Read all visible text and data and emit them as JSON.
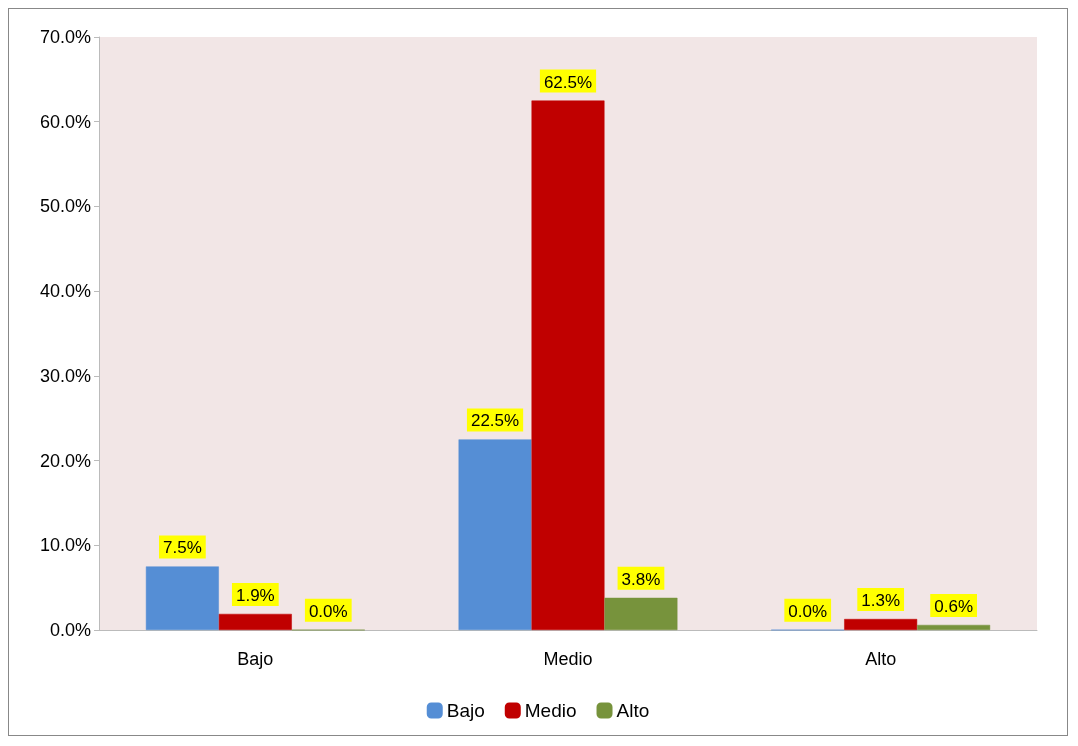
{
  "chart_data": {
    "type": "bar",
    "categories": [
      "Bajo",
      "Medio",
      "Alto"
    ],
    "series": [
      {
        "name": "Bajo",
        "color": "#558ed5",
        "values": [
          7.5,
          22.5,
          0.0
        ],
        "value_labels": [
          "7.5%",
          "22.5%",
          "0.0%"
        ]
      },
      {
        "name": "Medio",
        "color": "#c00000",
        "values": [
          1.9,
          62.5,
          1.3
        ],
        "value_labels": [
          "1.9%",
          "62.5%",
          "1.3%"
        ]
      },
      {
        "name": "Alto",
        "color": "#77933c",
        "values": [
          0.0,
          3.8,
          0.6
        ],
        "value_labels": [
          "0.0%",
          "3.8%",
          "0.6%"
        ]
      }
    ],
    "ylim": [
      0,
      70
    ],
    "yticks": [
      {
        "value": 0,
        "label": "0.0%"
      },
      {
        "value": 10,
        "label": "10.0%"
      },
      {
        "value": 20,
        "label": "20.0%"
      },
      {
        "value": 30,
        "label": "30.0%"
      },
      {
        "value": 40,
        "label": "40.0%"
      },
      {
        "value": 50,
        "label": "50.0%"
      },
      {
        "value": 60,
        "label": "60.0%"
      },
      {
        "value": 70,
        "label": "70.0%"
      }
    ],
    "grid": false,
    "legend": "bottom"
  }
}
